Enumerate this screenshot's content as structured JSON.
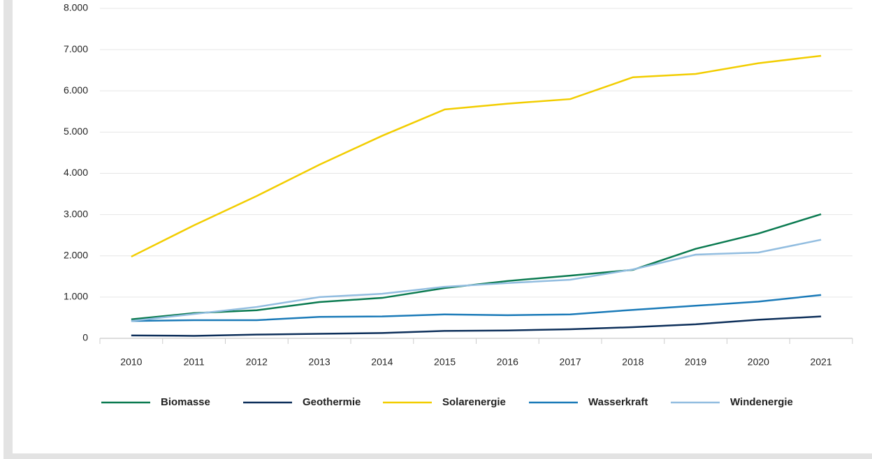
{
  "chart_data": {
    "type": "line",
    "categories": [
      "2010",
      "2011",
      "2012",
      "2013",
      "2014",
      "2015",
      "2016",
      "2017",
      "2018",
      "2019",
      "2020",
      "2021"
    ],
    "series": [
      {
        "name": "Biomasse",
        "color": "#0a7a50",
        "values": [
          460,
          610,
          680,
          880,
          980,
          1220,
          1390,
          1520,
          1660,
          2170,
          2540,
          3010
        ]
      },
      {
        "name": "Geothermie",
        "color": "#0d2f5a",
        "values": [
          70,
          60,
          90,
          110,
          130,
          180,
          190,
          220,
          270,
          340,
          450,
          530
        ]
      },
      {
        "name": "Solarenergie",
        "color": "#f2cd00",
        "values": [
          1980,
          2740,
          3450,
          4210,
          4910,
          5550,
          5690,
          5800,
          6330,
          6410,
          6670,
          6850
        ]
      },
      {
        "name": "Wasserkraft",
        "color": "#1a7ab8",
        "values": [
          420,
          440,
          440,
          520,
          530,
          580,
          560,
          580,
          690,
          790,
          890,
          1050
        ]
      },
      {
        "name": "Windenergie",
        "color": "#92bde0",
        "values": [
          420,
          590,
          760,
          1000,
          1080,
          1250,
          1340,
          1420,
          1670,
          2030,
          2080,
          2390
        ]
      }
    ],
    "ylim": [
      0,
      8000
    ],
    "yticks": [
      0,
      {
        "value": 1000,
        "label": "1.000"
      },
      {
        "value": 2000,
        "label": "2.000"
      },
      {
        "value": 3000,
        "label": "3.000"
      },
      {
        "value": 4000,
        "label": "4.000"
      },
      {
        "value": 5000,
        "label": "5.000"
      },
      {
        "value": 6000,
        "label": "6.000"
      },
      {
        "value": 7000,
        "label": "7.000"
      },
      {
        "value": 8000,
        "label": "8.000"
      }
    ],
    "grid": true,
    "legend": "bottom"
  }
}
